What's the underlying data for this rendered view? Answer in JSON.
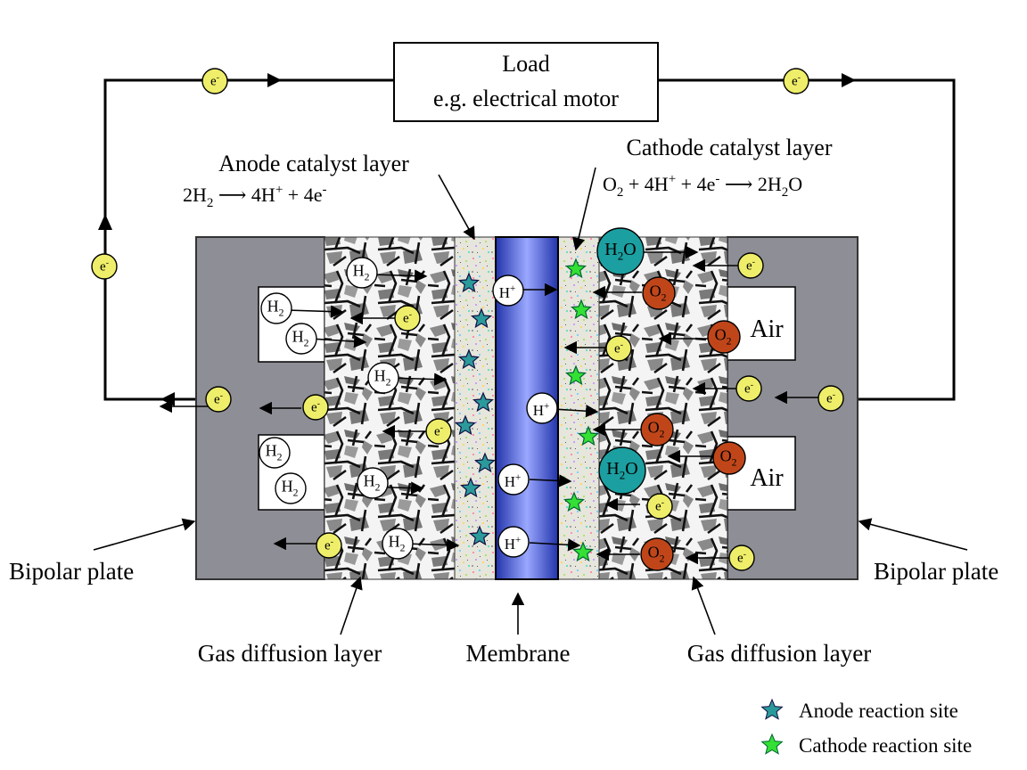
{
  "load": {
    "title": "Load",
    "subtitle": "e.g. electrical motor"
  },
  "anode": {
    "label": "Anode catalyst layer",
    "reaction": "2H2 → 4H+ + 4e-"
  },
  "cathode": {
    "label": "Cathode catalyst layer",
    "reaction": "O2 + 4H+ + 4e- → 2H2O"
  },
  "labels": {
    "bipolar_left": "Bipolar plate",
    "bipolar_right": "Bipolar plate",
    "gdl_left": "Gas diffusion layer",
    "gdl_right": "Gas diffusion layer",
    "membrane": "Membrane",
    "air_top": "Air",
    "air_bottom": "Air"
  },
  "legend": [
    {
      "label": "Anode reaction site",
      "color": "#2b9a9a"
    },
    {
      "label": "Cathode reaction site",
      "color": "#33e033"
    }
  ],
  "species": {
    "electron": "e-",
    "hydrogen": "H2",
    "proton": "H+",
    "oxygen": "O2",
    "water": "H2O"
  },
  "colors": {
    "plate": "#8e8e96",
    "membrane": "#3a4fcc",
    "electron": "#eeee6a",
    "oxygen": "#c0461a",
    "water": "#1c9fa0"
  }
}
